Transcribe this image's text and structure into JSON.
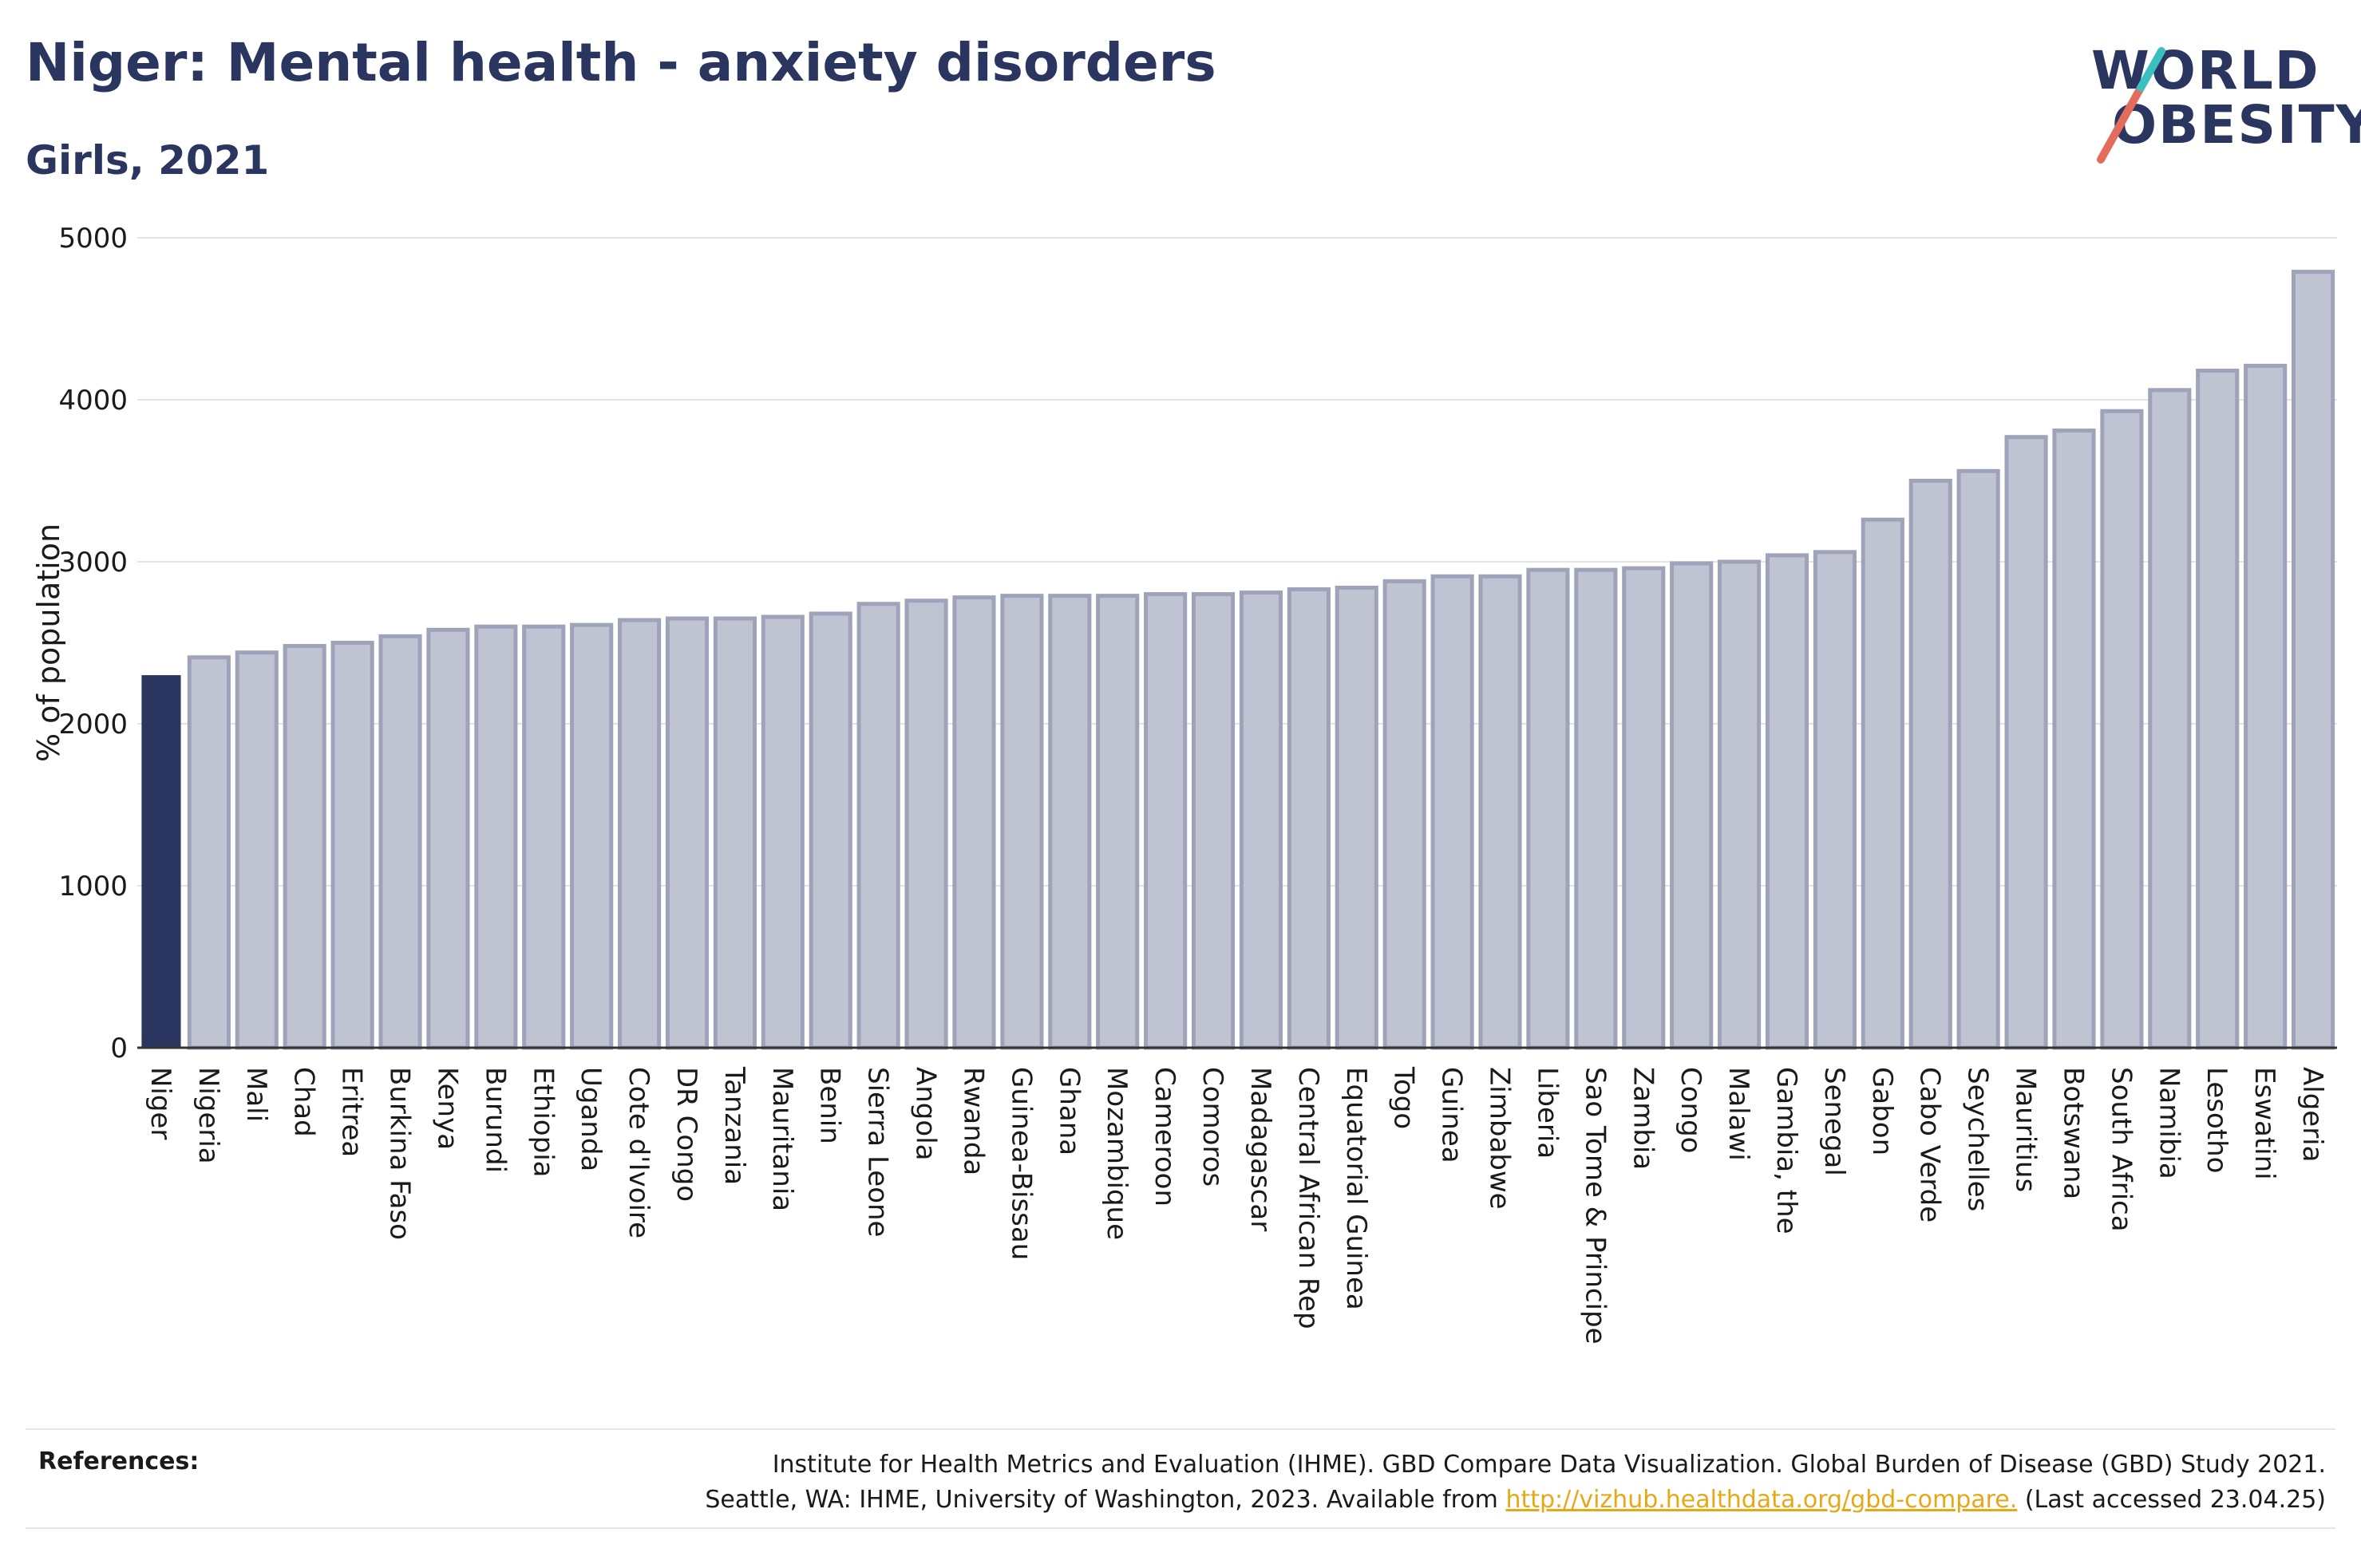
{
  "header": {
    "title": "Niger: Mental health - anxiety disorders",
    "subtitle": "Girls, 2021"
  },
  "logo": {
    "line1": "WORLD",
    "line2": "OBESITY",
    "slash_colors": [
      "#e36c5d",
      "#3cbfc1"
    ]
  },
  "colors": {
    "highlight": "#2b3660",
    "bar_fill": "#bfc3d2",
    "bar_stroke": "#9ea3b9",
    "grid": "#e3e3e3",
    "axis": "#333333"
  },
  "chart_data": {
    "type": "bar",
    "title": "Niger: Mental health - anxiety disorders",
    "subtitle": "Girls, 2021",
    "xlabel": "",
    "ylabel": "% of population",
    "ylim": [
      0,
      5000
    ],
    "yticks": [
      0,
      1000,
      2000,
      3000,
      4000,
      5000
    ],
    "grid": true,
    "highlight": "Niger",
    "categories": [
      "Niger",
      "Nigeria",
      "Mali",
      "Chad",
      "Eritrea",
      "Burkina Faso",
      "Kenya",
      "Burundi",
      "Ethiopia",
      "Uganda",
      "Cote d'Ivoire",
      "DR Congo",
      "Tanzania",
      "Mauritania",
      "Benin",
      "Sierra Leone",
      "Angola",
      "Rwanda",
      "Guinea-Bissau",
      "Ghana",
      "Mozambique",
      "Cameroon",
      "Comoros",
      "Madagascar",
      "Central African Rep",
      "Equatorial Guinea",
      "Togo",
      "Guinea",
      "Zimbabwe",
      "Liberia",
      "Sao Tome & Principe",
      "Zambia",
      "Congo",
      "Malawi",
      "Gambia, the",
      "Senegal",
      "Gabon",
      "Cabo Verde",
      "Seychelles",
      "Mauritius",
      "Botswana",
      "South Africa",
      "Namibia",
      "Lesotho",
      "Eswatini",
      "Algeria"
    ],
    "values": [
      2300,
      2410,
      2440,
      2480,
      2500,
      2540,
      2580,
      2600,
      2600,
      2610,
      2640,
      2650,
      2650,
      2660,
      2680,
      2740,
      2760,
      2780,
      2790,
      2790,
      2790,
      2800,
      2800,
      2810,
      2830,
      2840,
      2880,
      2910,
      2910,
      2950,
      2950,
      2960,
      2990,
      3000,
      3040,
      3060,
      3260,
      3500,
      3560,
      3770,
      3810,
      3930,
      4060,
      4180,
      4210,
      4790
    ]
  },
  "references": {
    "label": "References:",
    "line1": "Institute for Health Metrics and Evaluation (IHME). GBD Compare Data Visualization. Global Burden of Disease (GBD) Study 2021.",
    "line2_pre": "Seattle, WA: IHME, University of Washington, 2023. Available from ",
    "line2_link": "http://vizhub.healthdata.org/gbd-compare.",
    "line2_post": " (Last accessed 23.04.25)"
  }
}
